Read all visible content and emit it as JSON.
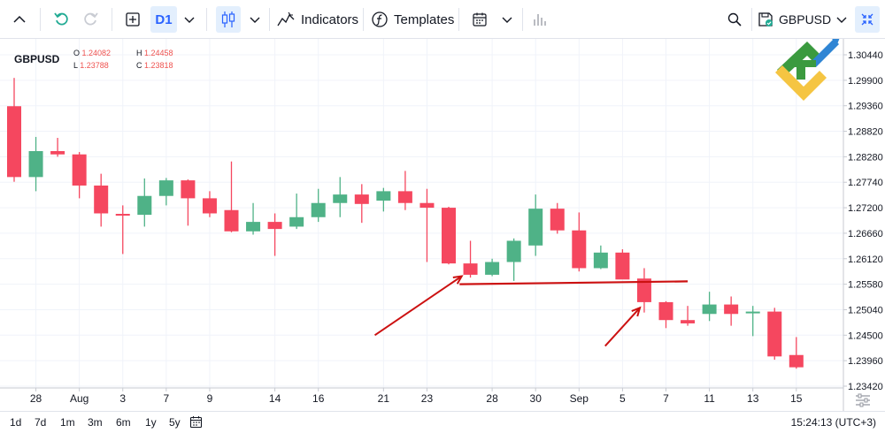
{
  "toolbar": {
    "interval": "D1",
    "indicators_label": "Indicators",
    "templates_label": "Templates",
    "symbol": "GBPUSD"
  },
  "legend": {
    "symbol": "GBPUSD",
    "open_label": "O",
    "open": "1.24082",
    "high_label": "H",
    "high": "1.24458",
    "low_label": "L",
    "low": "1.23788",
    "close_label": "C",
    "close": "1.23818"
  },
  "bottombar": {
    "ranges": [
      "1d",
      "7d",
      "1m",
      "3m",
      "6m",
      "1y",
      "5y"
    ],
    "clock": "15:24:13 (UTC+3)"
  },
  "colors": {
    "up": "#4fb287",
    "down": "#f5475f",
    "annotation": "#cc1111"
  },
  "chart_data": {
    "type": "candlestick",
    "symbol": "GBPUSD",
    "y_ticks": [
      1.2342,
      1.2396,
      1.245,
      1.2504,
      1.2558,
      1.2612,
      1.2666,
      1.272,
      1.2774,
      1.2828,
      1.2882,
      1.2936,
      1.299,
      1.3044
    ],
    "y_tick_labels": [
      "1.23420",
      "1.23960",
      "1.24500",
      "1.25040",
      "1.25580",
      "1.26120",
      "1.26660",
      "1.27200",
      "1.27740",
      "1.28280",
      "1.28820",
      "1.29360",
      "1.29900",
      "1.30440"
    ],
    "ylim": [
      1.2342,
      1.3064
    ],
    "x_tick_labels": [
      {
        "label": "28",
        "index": 1
      },
      {
        "label": "Aug",
        "index": 3
      },
      {
        "label": "3",
        "index": 5
      },
      {
        "label": "7",
        "index": 7
      },
      {
        "label": "9",
        "index": 9
      },
      {
        "label": "14",
        "index": 12
      },
      {
        "label": "16",
        "index": 14
      },
      {
        "label": "21",
        "index": 17
      },
      {
        "label": "23",
        "index": 19
      },
      {
        "label": "28",
        "index": 22
      },
      {
        "label": "30",
        "index": 24
      },
      {
        "label": "Sep",
        "index": 26
      },
      {
        "label": "5",
        "index": 28
      },
      {
        "label": "7",
        "index": 30
      },
      {
        "label": "11",
        "index": 32
      },
      {
        "label": "13",
        "index": 34
      },
      {
        "label": "15",
        "index": 36
      }
    ],
    "candles": [
      {
        "o": 1.2935,
        "h": 1.2995,
        "l": 1.2775,
        "c": 1.2785
      },
      {
        "o": 1.2785,
        "h": 1.287,
        "l": 1.2755,
        "c": 1.284
      },
      {
        "o": 1.284,
        "h": 1.2868,
        "l": 1.2828,
        "c": 1.2833
      },
      {
        "o": 1.2833,
        "h": 1.2838,
        "l": 1.274,
        "c": 1.2767
      },
      {
        "o": 1.2767,
        "h": 1.2792,
        "l": 1.268,
        "c": 1.2708
      },
      {
        "o": 1.2707,
        "h": 1.2725,
        "l": 1.2622,
        "c": 1.2705
      },
      {
        "o": 1.2705,
        "h": 1.2782,
        "l": 1.268,
        "c": 1.2745
      },
      {
        "o": 1.2745,
        "h": 1.2783,
        "l": 1.2725,
        "c": 1.2778
      },
      {
        "o": 1.2778,
        "h": 1.278,
        "l": 1.2682,
        "c": 1.274
      },
      {
        "o": 1.274,
        "h": 1.2755,
        "l": 1.27,
        "c": 1.2708
      },
      {
        "o": 1.2715,
        "h": 1.2818,
        "l": 1.2668,
        "c": 1.267
      },
      {
        "o": 1.267,
        "h": 1.273,
        "l": 1.2663,
        "c": 1.269
      },
      {
        "o": 1.269,
        "h": 1.2708,
        "l": 1.2618,
        "c": 1.2675
      },
      {
        "o": 1.268,
        "h": 1.275,
        "l": 1.2675,
        "c": 1.27
      },
      {
        "o": 1.27,
        "h": 1.276,
        "l": 1.269,
        "c": 1.273
      },
      {
        "o": 1.273,
        "h": 1.2785,
        "l": 1.27,
        "c": 1.2748
      },
      {
        "o": 1.2748,
        "h": 1.277,
        "l": 1.2688,
        "c": 1.2728
      },
      {
        "o": 1.2735,
        "h": 1.2762,
        "l": 1.2712,
        "c": 1.2755
      },
      {
        "o": 1.2755,
        "h": 1.2798,
        "l": 1.2715,
        "c": 1.273
      },
      {
        "o": 1.273,
        "h": 1.276,
        "l": 1.2605,
        "c": 1.272
      },
      {
        "o": 1.272,
        "h": 1.2722,
        "l": 1.26,
        "c": 1.2602
      },
      {
        "o": 1.2602,
        "h": 1.265,
        "l": 1.2572,
        "c": 1.2578
      },
      {
        "o": 1.2578,
        "h": 1.2612,
        "l": 1.2575,
        "c": 1.2605
      },
      {
        "o": 1.2605,
        "h": 1.2655,
        "l": 1.2565,
        "c": 1.265
      },
      {
        "o": 1.264,
        "h": 1.2748,
        "l": 1.2618,
        "c": 1.2718
      },
      {
        "o": 1.2718,
        "h": 1.273,
        "l": 1.2665,
        "c": 1.2672
      },
      {
        "o": 1.2672,
        "h": 1.271,
        "l": 1.2585,
        "c": 1.2592
      },
      {
        "o": 1.2592,
        "h": 1.264,
        "l": 1.259,
        "c": 1.2625
      },
      {
        "o": 1.2625,
        "h": 1.2632,
        "l": 1.257,
        "c": 1.2568
      },
      {
        "o": 1.257,
        "h": 1.2592,
        "l": 1.2498,
        "c": 1.252
      },
      {
        "o": 1.252,
        "h": 1.2522,
        "l": 1.2465,
        "c": 1.2482
      },
      {
        "o": 1.2482,
        "h": 1.2512,
        "l": 1.247,
        "c": 1.2475
      },
      {
        "o": 1.2495,
        "h": 1.2542,
        "l": 1.248,
        "c": 1.2515
      },
      {
        "o": 1.2515,
        "h": 1.2532,
        "l": 1.247,
        "c": 1.2495
      },
      {
        "o": 1.2498,
        "h": 1.2512,
        "l": 1.2448,
        "c": 1.25
      },
      {
        "o": 1.25,
        "h": 1.2508,
        "l": 1.2398,
        "c": 1.2405
      },
      {
        "o": 1.2408,
        "h": 1.2446,
        "l": 1.2379,
        "c": 1.2382
      }
    ],
    "annotations": [
      {
        "type": "line",
        "from": {
          "index": 20.5,
          "value": 1.2558
        },
        "to": {
          "index": 31.0,
          "value": 1.2564
        }
      },
      {
        "type": "arrow",
        "from": {
          "index": 16.6,
          "value": 1.245
        },
        "to": {
          "index": 20.6,
          "value": 1.2575
        }
      },
      {
        "type": "arrow",
        "from": {
          "index": 27.2,
          "value": 1.2427
        },
        "to": {
          "index": 28.8,
          "value": 1.2508
        }
      }
    ]
  }
}
